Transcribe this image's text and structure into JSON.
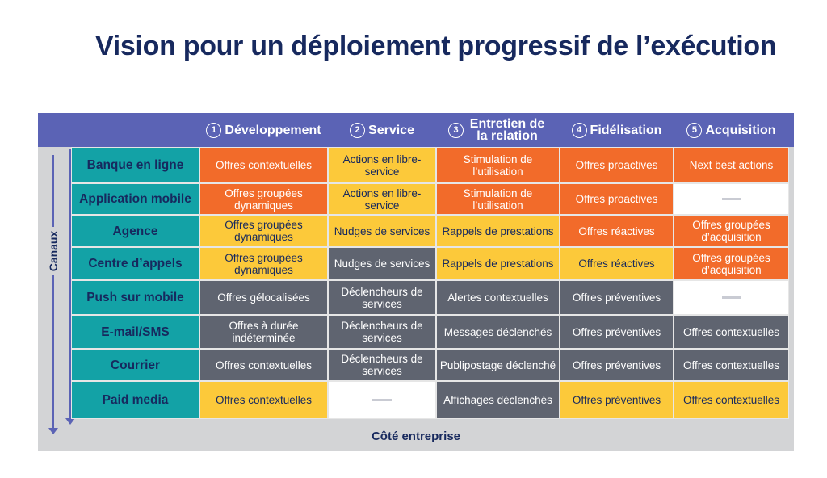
{
  "title": "Vision pour un déploiement progressif de l’exécution",
  "axis_label": "Canaux",
  "bottom_label": "Côté entreprise",
  "colors": {
    "header": "#5b63b5",
    "channel": "#13a2a6",
    "o": "#f26b2a",
    "y": "#fcc93a",
    "g": "#5f6470"
  },
  "columns": [
    {
      "num": "1",
      "label": "Développement"
    },
    {
      "num": "2",
      "label": "Service"
    },
    {
      "num": "3",
      "label": "Entretien de la relation"
    },
    {
      "num": "4",
      "label": "Fidélisation"
    },
    {
      "num": "5",
      "label": "Acquisition"
    }
  ],
  "rows": [
    {
      "channel": "Banque en ligne",
      "cells": [
        [
          "o",
          "Offres contextuelles"
        ],
        [
          "y",
          "Actions en libre-service"
        ],
        [
          "o",
          "Stimulation de l’utilisation"
        ],
        [
          "o",
          "Offres proactives"
        ],
        [
          "o",
          "Next best actions"
        ]
      ]
    },
    {
      "channel": "Application mobile",
      "cells": [
        [
          "o",
          "Offres groupées dynamiques"
        ],
        [
          "y",
          "Actions en libre-service"
        ],
        [
          "o",
          "Stimulation de l’utilisation"
        ],
        [
          "o",
          "Offres proactives"
        ],
        [
          "w",
          ""
        ]
      ]
    },
    {
      "channel": "Agence",
      "cells": [
        [
          "y",
          "Offres groupées dynamiques"
        ],
        [
          "y",
          "Nudges de services"
        ],
        [
          "y",
          "Rappels de prestations"
        ],
        [
          "o",
          "Offres réactives"
        ],
        [
          "o",
          "Offres groupées d’acquisition"
        ]
      ]
    },
    {
      "channel": "Centre d’appels",
      "cells": [
        [
          "y",
          "Offres groupées dynamiques"
        ],
        [
          "g",
          "Nudges de services"
        ],
        [
          "y",
          "Rappels de prestations"
        ],
        [
          "y",
          "Offres réactives"
        ],
        [
          "o",
          "Offres groupées d’acquisition"
        ]
      ]
    },
    {
      "channel": "Push sur mobile",
      "cells": [
        [
          "g",
          "Offres gélocalisées"
        ],
        [
          "g",
          "Déclencheurs de services"
        ],
        [
          "g",
          "Alertes contextuelles"
        ],
        [
          "g",
          "Offres préventives"
        ],
        [
          "w",
          ""
        ]
      ]
    },
    {
      "channel": "E-mail/SMS",
      "cells": [
        [
          "g",
          "Offres à durée indéterminée"
        ],
        [
          "g",
          "Déclencheurs de services"
        ],
        [
          "g",
          "Messages déclenchés"
        ],
        [
          "g",
          "Offres préventives"
        ],
        [
          "g",
          "Offres contextuelles"
        ]
      ]
    },
    {
      "channel": "Courrier",
      "cells": [
        [
          "g",
          "Offres contextuelles"
        ],
        [
          "g",
          "Déclencheurs de services"
        ],
        [
          "g",
          "Publipostage déclenché"
        ],
        [
          "g",
          "Offres préventives"
        ],
        [
          "g",
          "Offres contextuelles"
        ]
      ]
    },
    {
      "channel": "Paid media",
      "cells": [
        [
          "y",
          "Offres contextuelles"
        ],
        [
          "w",
          ""
        ],
        [
          "g",
          "Affichages déclenchés"
        ],
        [
          "y",
          "Offres préventives"
        ],
        [
          "y",
          "Offres contextuelles"
        ]
      ]
    }
  ]
}
